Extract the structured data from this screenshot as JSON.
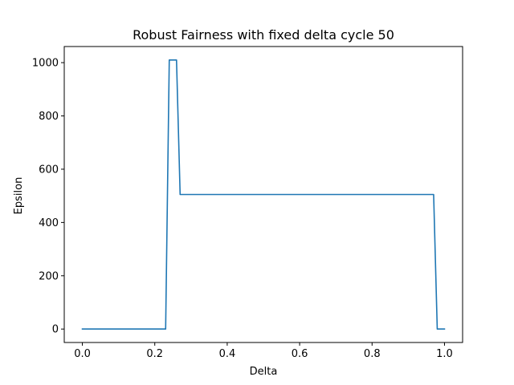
{
  "chart_data": {
    "type": "line",
    "title": "Robust Fairness with fixed delta cycle 50",
    "xlabel": "Delta",
    "ylabel": "Epsilon",
    "xlim": [
      -0.05,
      1.05
    ],
    "ylim": [
      -50.5,
      1060.5
    ],
    "xticks": [
      0.0,
      0.2,
      0.4,
      0.6,
      0.8,
      1.0
    ],
    "xtick_labels": [
      "0.0",
      "0.2",
      "0.4",
      "0.6",
      "0.8",
      "1.0"
    ],
    "yticks": [
      0,
      200,
      400,
      600,
      800,
      1000
    ],
    "ytick_labels": [
      "0",
      "200",
      "400",
      "600",
      "800",
      "1000"
    ],
    "grid": false,
    "series": [
      {
        "color": "#1f77b4",
        "x": [
          0.0,
          0.23,
          0.24,
          0.26,
          0.27,
          0.97,
          0.98,
          1.0
        ],
        "y": [
          0,
          0,
          1010,
          1010,
          505,
          505,
          0,
          0
        ]
      }
    ]
  }
}
